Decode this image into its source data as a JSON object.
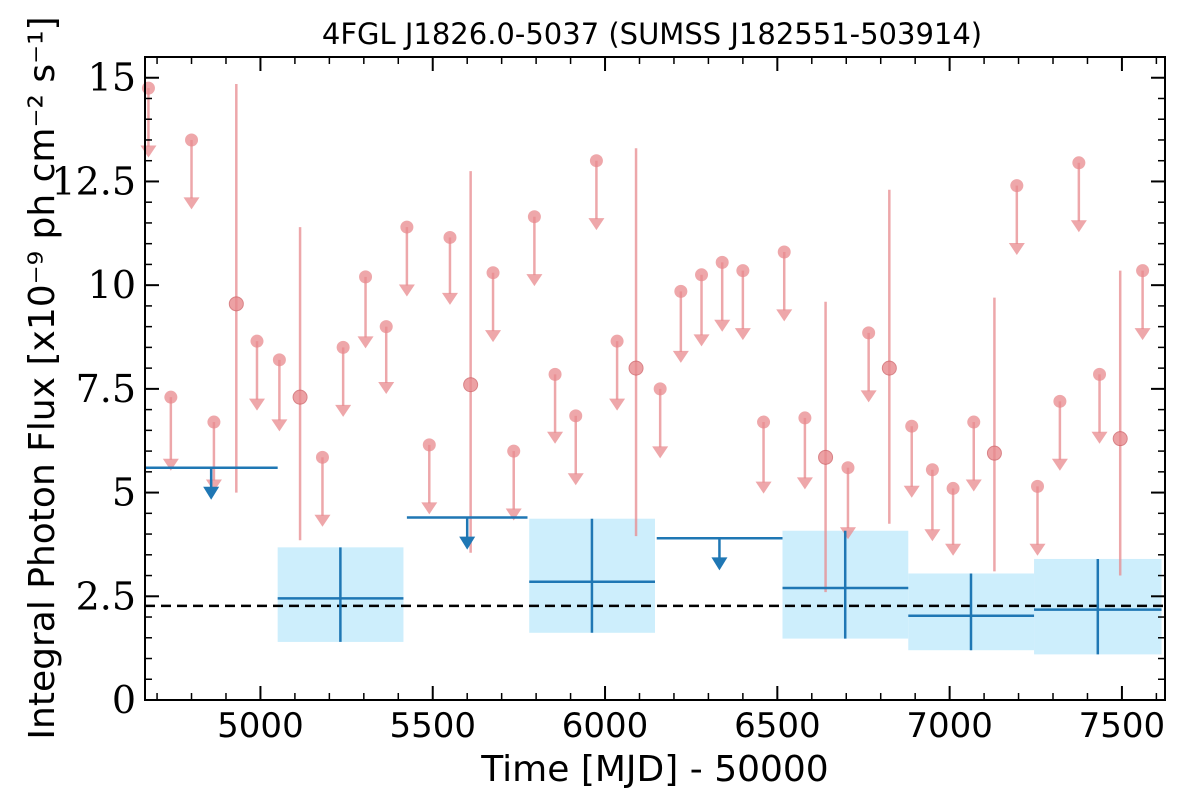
{
  "chart_data": {
    "type": "scatter",
    "title": "4FGL J1826.0-5037 (SUMSS J182551-503914)",
    "xlabel": "Time [MJD] - 50000",
    "ylabel": "Integral Photon Flux [x10⁻⁹ ph cm⁻² s⁻¹]",
    "xlim": [
      4665,
      7625
    ],
    "ylim": [
      0,
      15.5
    ],
    "x_ticks": [
      5000,
      5500,
      6000,
      6500,
      7000,
      7500
    ],
    "x_tick_labels": [
      "5000",
      "5500",
      "6000",
      "6500",
      "7000",
      "7500"
    ],
    "y_ticks": [
      0,
      2.5,
      5,
      7.5,
      10,
      12.5,
      15
    ],
    "y_tick_labels": [
      "0",
      "2.5",
      "5",
      "7.5",
      "10",
      "12.5",
      "15"
    ],
    "grid": false,
    "colors": {
      "short_bins": "#e88a8e",
      "long_bins": "#1f77b4",
      "long_bins_band": "#cdeefc",
      "reference_line": "#000000"
    },
    "reference_line": {
      "y": 2.27,
      "style": "dashed"
    },
    "series": [
      {
        "role": "short-bin upper limits",
        "x": [
          4675,
          4740,
          4800,
          4865,
          4990,
          5055,
          5180,
          5240,
          5305,
          5365,
          5425,
          5490,
          5550,
          5675,
          5735,
          5795,
          5855,
          5915,
          5975,
          6035,
          6160,
          6220,
          6280,
          6340,
          6400,
          6460,
          6520,
          6580,
          6705,
          6765,
          6890,
          6950,
          7010,
          7070,
          7195,
          7255,
          7320,
          7375,
          7435,
          7560
        ],
        "y": [
          14.75,
          7.3,
          13.5,
          6.7,
          8.65,
          8.2,
          5.85,
          8.5,
          10.2,
          9.0,
          11.4,
          6.15,
          11.15,
          10.3,
          6.0,
          11.65,
          7.85,
          6.85,
          13.0,
          8.65,
          7.5,
          9.85,
          10.25,
          10.55,
          10.35,
          6.7,
          10.8,
          6.8,
          5.6,
          8.85,
          6.6,
          5.55,
          5.1,
          6.7,
          12.4,
          5.15,
          7.2,
          12.95,
          7.85,
          10.35
        ],
        "limit_y": [
          13.1,
          5.55,
          11.85,
          5.05,
          7.0,
          6.5,
          4.2,
          6.85,
          8.5,
          7.4,
          9.75,
          4.5,
          9.55,
          8.65,
          4.35,
          10.0,
          6.2,
          5.2,
          11.35,
          7.0,
          5.85,
          8.15,
          8.55,
          8.9,
          8.7,
          5.0,
          9.15,
          5.1,
          3.9,
          7.2,
          4.9,
          3.85,
          3.5,
          5.05,
          10.75,
          3.5,
          5.55,
          11.3,
          6.2,
          8.7
        ]
      },
      {
        "role": "short-bin detections",
        "x": [
          4930,
          5115,
          5610,
          6090,
          6640,
          6825,
          7130,
          7495
        ],
        "y": [
          9.55,
          7.3,
          7.6,
          8.0,
          5.85,
          8.0,
          5.95,
          6.3
        ],
        "y_low": [
          5.0,
          3.85,
          3.55,
          3.95,
          2.6,
          4.25,
          3.1,
          3.0
        ],
        "y_high": [
          14.85,
          11.4,
          12.75,
          13.3,
          9.6,
          12.3,
          9.7,
          10.35
        ]
      },
      {
        "role": "long-bin upper limits",
        "x_start": [
          4665,
          5425,
          6150
        ],
        "x_end": [
          5050,
          5775,
          6515
        ],
        "x_mid": [
          4857,
          5600,
          6332
        ],
        "y": [
          5.6,
          4.4,
          3.9
        ],
        "limit_y": [
          4.85,
          3.65,
          3.15
        ]
      },
      {
        "role": "long-bin detections",
        "x_start": [
          5050,
          5780,
          6515,
          6880,
          7245
        ],
        "x_end": [
          5415,
          6145,
          6880,
          7245,
          7615
        ],
        "x_mid": [
          5232,
          5962,
          6697,
          7062,
          7430
        ],
        "y": [
          2.45,
          2.85,
          2.7,
          2.03,
          2.18
        ],
        "y_low": [
          1.4,
          1.62,
          1.48,
          1.2,
          1.1
        ],
        "y_high": [
          3.68,
          4.37,
          4.08,
          3.05,
          3.4
        ]
      }
    ]
  }
}
